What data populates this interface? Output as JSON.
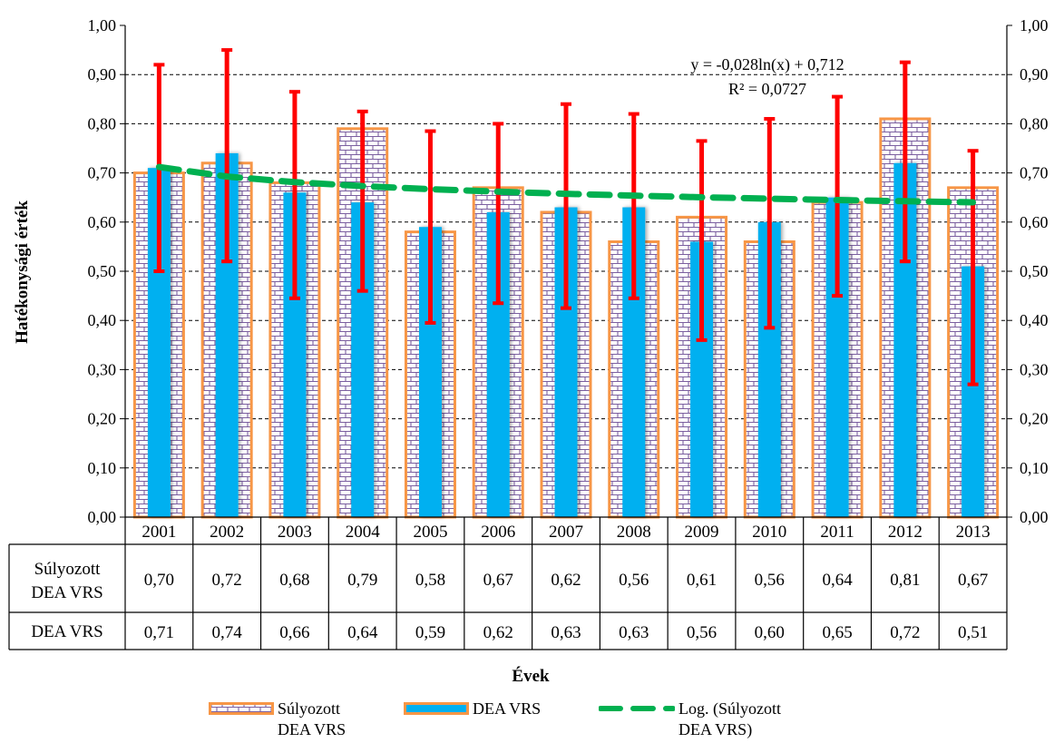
{
  "chart_data": {
    "type": "bar",
    "ylabel": "Hatékonysági érték",
    "xlabel": "Évek",
    "ylim": [
      0,
      1
    ],
    "y_ticks": [
      "0,00",
      "0,10",
      "0,20",
      "0,30",
      "0,40",
      "0,50",
      "0,60",
      "0,70",
      "0,80",
      "0,90",
      "1,00"
    ],
    "grid": "horizontal dashed",
    "categories": [
      "2001",
      "2002",
      "2003",
      "2004",
      "2005",
      "2006",
      "2007",
      "2008",
      "2009",
      "2010",
      "2011",
      "2012",
      "2013"
    ],
    "series": [
      {
        "name": "Súlyozott DEA VRS",
        "table_label": [
          "Súlyozott",
          "DEA VRS"
        ],
        "values": [
          0.7,
          0.72,
          0.68,
          0.79,
          0.58,
          0.67,
          0.62,
          0.56,
          0.61,
          0.56,
          0.64,
          0.81,
          0.67
        ],
        "labels": [
          "0,70",
          "0,72",
          "0,68",
          "0,79",
          "0,58",
          "0,67",
          "0,62",
          "0,56",
          "0,61",
          "0,56",
          "0,64",
          "0,81",
          "0,67"
        ],
        "color": "#F79646",
        "pattern": "brick"
      },
      {
        "name": "DEA VRS",
        "table_label": [
          "DEA VRS"
        ],
        "values": [
          0.71,
          0.74,
          0.66,
          0.64,
          0.59,
          0.62,
          0.63,
          0.63,
          0.56,
          0.6,
          0.65,
          0.72,
          0.51
        ],
        "labels": [
          "0,71",
          "0,74",
          "0,66",
          "0,64",
          "0,59",
          "0,62",
          "0,63",
          "0,63",
          "0,56",
          "0,60",
          "0,65",
          "0,72",
          "0,51"
        ],
        "color": "#00B0F0",
        "error_low": [
          0.5,
          0.52,
          0.445,
          0.46,
          0.395,
          0.435,
          0.425,
          0.445,
          0.36,
          0.385,
          0.45,
          0.52,
          0.27
        ],
        "error_high": [
          0.92,
          0.95,
          0.865,
          0.825,
          0.785,
          0.8,
          0.84,
          0.82,
          0.765,
          0.81,
          0.855,
          0.925,
          0.745
        ],
        "error_color": "#FF0000"
      }
    ],
    "trendline": {
      "name": "Log. (Súlyozott DEA VRS)",
      "type": "logarithmic",
      "a": -0.028,
      "b": 0.712,
      "color": "#00B050",
      "equation": "y = -0,028ln(x) + 0,712",
      "r_squared": "R² = 0,0727"
    },
    "legend": {
      "placement": "bottom",
      "items": [
        "Súlyozott\nDEA VRS",
        "DEA VRS",
        "Log. (Súlyozott\nDEA VRS)"
      ]
    }
  }
}
